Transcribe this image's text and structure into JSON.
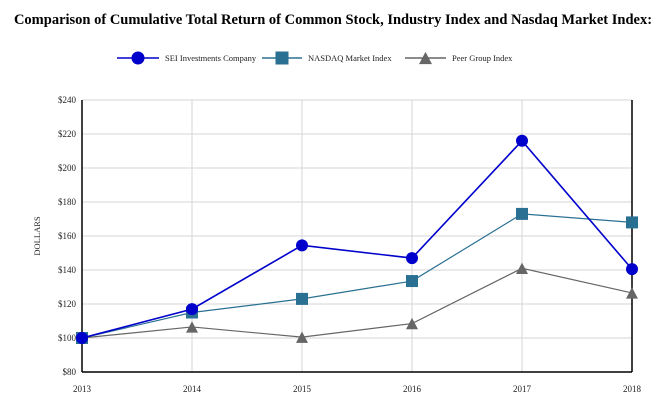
{
  "chart_data": {
    "type": "line",
    "title": "Comparison of Cumulative Total Return of Common Stock, Industry Index and Nasdaq Market Index:",
    "xlabel": "",
    "ylabel": "DOLLARS",
    "x": [
      "2013",
      "2014",
      "2015",
      "2016",
      "2017",
      "2018"
    ],
    "y_ticks": [
      "$80",
      "$100",
      "$120",
      "$140",
      "$160",
      "$180",
      "$200",
      "$220",
      "$240"
    ],
    "ylim": [
      80,
      240
    ],
    "grid": true,
    "legend_position": "top",
    "series": [
      {
        "name": "SEI Investments Company",
        "color": "#0000cc",
        "marker": "circle",
        "values": [
          100,
          117,
          154.5,
          147,
          216,
          140.5
        ]
      },
      {
        "name": "NASDAQ Market Index",
        "color": "#2a7092",
        "marker": "square",
        "values": [
          100,
          115,
          123,
          133.5,
          173,
          168
        ]
      },
      {
        "name": "Peer Group Index",
        "color": "#666666",
        "marker": "triangle",
        "values": [
          100,
          106.5,
          100.5,
          108.5,
          141,
          126.5
        ]
      }
    ]
  }
}
